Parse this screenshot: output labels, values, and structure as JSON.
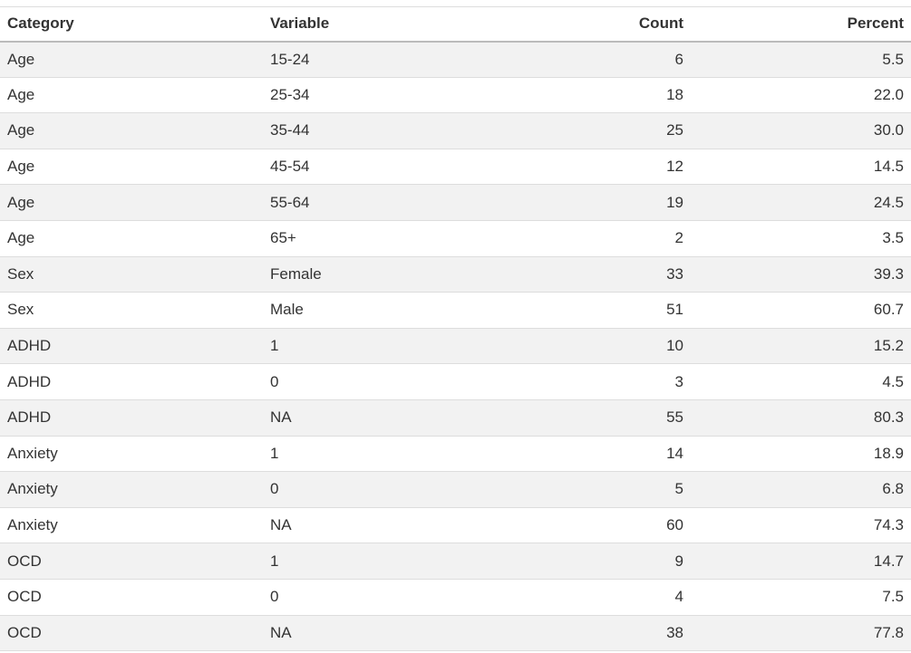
{
  "table": {
    "headers": {
      "category": "Category",
      "variable": "Variable",
      "count": "Count",
      "percent": "Percent"
    },
    "rows": [
      {
        "category": "Age",
        "variable": "15-24",
        "count": "6",
        "percent": "5.5"
      },
      {
        "category": "Age",
        "variable": "25-34",
        "count": "18",
        "percent": "22.0"
      },
      {
        "category": "Age",
        "variable": "35-44",
        "count": "25",
        "percent": "30.0"
      },
      {
        "category": "Age",
        "variable": "45-54",
        "count": "12",
        "percent": "14.5"
      },
      {
        "category": "Age",
        "variable": "55-64",
        "count": "19",
        "percent": "24.5"
      },
      {
        "category": "Age",
        "variable": "65+",
        "count": "2",
        "percent": "3.5"
      },
      {
        "category": "Sex",
        "variable": "Female",
        "count": "33",
        "percent": "39.3"
      },
      {
        "category": "Sex",
        "variable": "Male",
        "count": "51",
        "percent": "60.7"
      },
      {
        "category": "ADHD",
        "variable": "1",
        "count": "10",
        "percent": "15.2"
      },
      {
        "category": "ADHD",
        "variable": "0",
        "count": "3",
        "percent": "4.5"
      },
      {
        "category": "ADHD",
        "variable": "NA",
        "count": "55",
        "percent": "80.3"
      },
      {
        "category": "Anxiety",
        "variable": "1",
        "count": "14",
        "percent": "18.9"
      },
      {
        "category": "Anxiety",
        "variable": "0",
        "count": "5",
        "percent": "6.8"
      },
      {
        "category": "Anxiety",
        "variable": "NA",
        "count": "60",
        "percent": "74.3"
      },
      {
        "category": "OCD",
        "variable": "1",
        "count": "9",
        "percent": "14.7"
      },
      {
        "category": "OCD",
        "variable": "0",
        "count": "4",
        "percent": "7.5"
      },
      {
        "category": "OCD",
        "variable": "NA",
        "count": "38",
        "percent": "77.8"
      }
    ]
  }
}
